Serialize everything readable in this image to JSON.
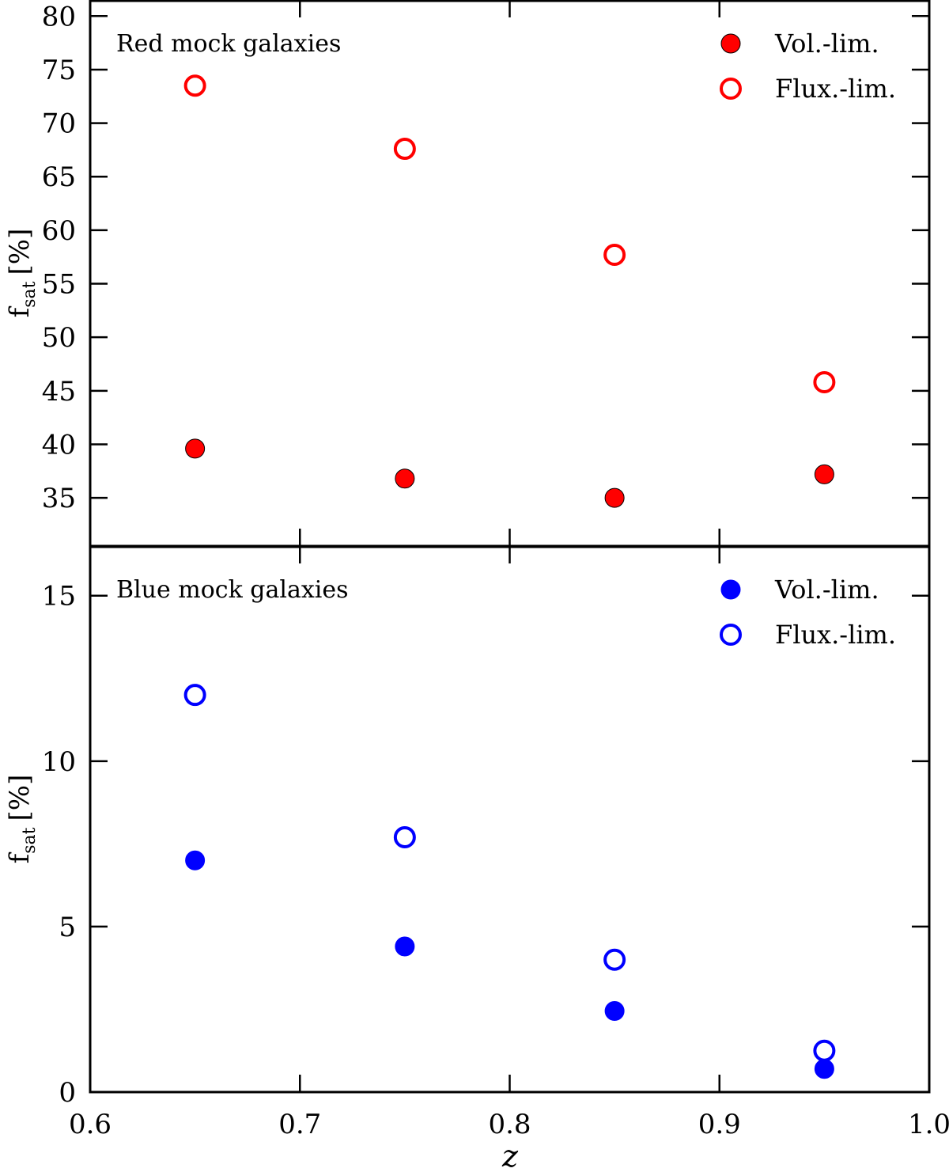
{
  "chart_data": [
    {
      "type": "scatter",
      "panel": "top",
      "title": "Red mock galaxies",
      "xlabel": "z",
      "ylabel": "f",
      "ylabel_sub": "sat",
      "ylabel_unit": "[%]",
      "xlim": [
        0.6,
        1.0
      ],
      "ylim": [
        30.5,
        81.5
      ],
      "yticks": [
        "35",
        "40",
        "45",
        "50",
        "55",
        "60",
        "65",
        "70",
        "75",
        "80"
      ],
      "legend_position": "top-right",
      "color": "#ff0000",
      "series": [
        {
          "name": "Vol.-lim.",
          "marker": "filled",
          "x": [
            0.65,
            0.75,
            0.85,
            0.95
          ],
          "y": [
            39.6,
            36.8,
            35.0,
            37.2
          ]
        },
        {
          "name": "Flux.-lim.",
          "marker": "open",
          "x": [
            0.65,
            0.75,
            0.85,
            0.95
          ],
          "y": [
            73.5,
            67.6,
            57.7,
            45.8
          ]
        }
      ]
    },
    {
      "type": "scatter",
      "panel": "bottom",
      "title": "Blue mock galaxies",
      "xlabel": "z",
      "ylabel": "f",
      "ylabel_sub": "sat",
      "ylabel_unit": "[%]",
      "xlim": [
        0.6,
        1.0
      ],
      "ylim": [
        0,
        16.5
      ],
      "yticks": [
        "0",
        "5",
        "10",
        "15"
      ],
      "xticks": [
        "0.6",
        "0.7",
        "0.8",
        "0.9",
        "1.0"
      ],
      "legend_position": "top-right",
      "color": "#0000ff",
      "series": [
        {
          "name": "Vol.-lim.",
          "marker": "filled",
          "x": [
            0.65,
            0.75,
            0.85,
            0.95
          ],
          "y": [
            7.0,
            4.4,
            2.45,
            0.7
          ]
        },
        {
          "name": "Flux.-lim.",
          "marker": "open",
          "x": [
            0.65,
            0.75,
            0.85,
            0.95
          ],
          "y": [
            12.0,
            7.7,
            4.0,
            1.25
          ]
        }
      ]
    }
  ]
}
